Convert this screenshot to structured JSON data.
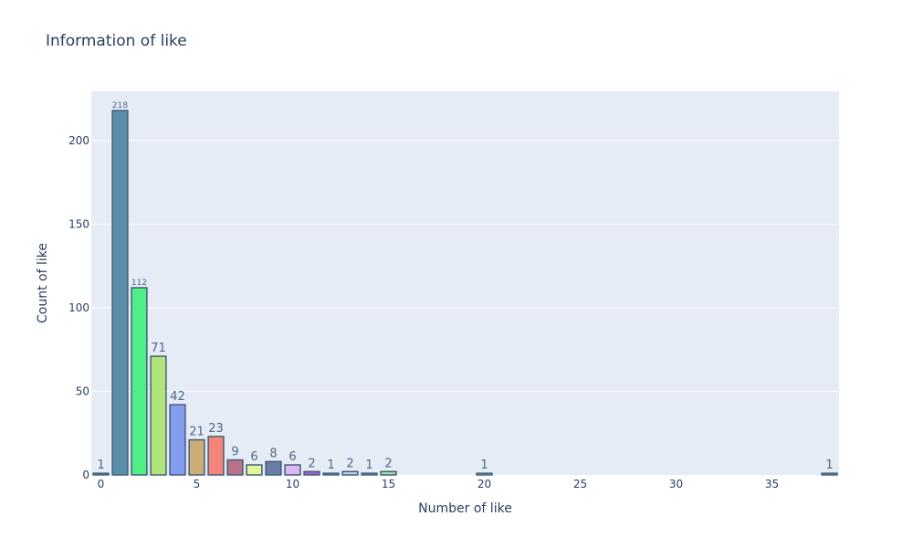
{
  "chart_data": {
    "type": "bar",
    "title": "Information of like",
    "xlabel": "Number of like",
    "ylabel": "Count of like",
    "x": [
      0,
      1,
      2,
      3,
      4,
      5,
      6,
      7,
      8,
      9,
      10,
      11,
      12,
      13,
      14,
      15,
      20,
      38
    ],
    "values": [
      1,
      218,
      112,
      71,
      42,
      21,
      23,
      9,
      6,
      8,
      6,
      2,
      1,
      2,
      1,
      2,
      1,
      1
    ],
    "labels": [
      "1",
      "218",
      "112",
      "71",
      "42",
      "21",
      "23",
      "9",
      "6",
      "8",
      "6",
      "2",
      "1",
      "2",
      "1",
      "2",
      "1",
      "1"
    ],
    "colors": [
      "#5b7fcf",
      "#4a85a3",
      "#3ef07a",
      "#abe36a",
      "#7894ef",
      "#c9a568",
      "#f6786b",
      "#b4647a",
      "#e5f58e",
      "#5f6f9e",
      "#d7b2f4",
      "#9a52d3",
      "#7f9ba6",
      "#b0d0f0",
      "#7fa4bf",
      "#9fdf8f",
      "#8fb4ef",
      "#7f9fcf"
    ],
    "xlim": [
      -0.5,
      38.5
    ],
    "ylim": [
      0,
      229.5
    ],
    "xticks": [
      0,
      5,
      10,
      15,
      20,
      25,
      30,
      35
    ],
    "yticks": [
      0,
      50,
      100,
      150,
      200
    ],
    "grid": true
  }
}
